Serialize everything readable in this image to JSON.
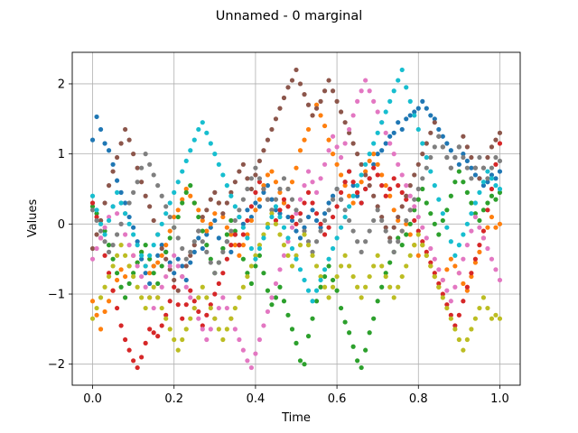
{
  "chart_data": {
    "type": "scatter",
    "title": "Unnamed - 0 marginal",
    "xlabel": "Time",
    "ylabel": "Values",
    "xlim": [
      -0.05,
      1.05
    ],
    "ylim": [
      -2.3,
      2.45
    ],
    "xticks": [
      0.0,
      0.2,
      0.4,
      0.6,
      0.8,
      1.0
    ],
    "xtick_labels": [
      "0.0",
      "0.2",
      "0.4",
      "0.6",
      "0.8",
      "1.0"
    ],
    "yticks": [
      -2,
      -1,
      0,
      1,
      2
    ],
    "ytick_labels": [
      "−2",
      "−1",
      "0",
      "1",
      "2"
    ],
    "grid": true,
    "legend": "none",
    "x": [
      0.0,
      0.01,
      0.02,
      0.03,
      0.04,
      0.05,
      0.06,
      0.07,
      0.08,
      0.09,
      0.1,
      0.11,
      0.12,
      0.13,
      0.14,
      0.15,
      0.16,
      0.17,
      0.18,
      0.19,
      0.2,
      0.21,
      0.22,
      0.23,
      0.24,
      0.25,
      0.26,
      0.27,
      0.28,
      0.29,
      0.3,
      0.31,
      0.32,
      0.33,
      0.34,
      0.35,
      0.36,
      0.37,
      0.38,
      0.39,
      0.4,
      0.41,
      0.42,
      0.43,
      0.44,
      0.45,
      0.46,
      0.47,
      0.48,
      0.49,
      0.5,
      0.51,
      0.52,
      0.53,
      0.54,
      0.55,
      0.56,
      0.57,
      0.58,
      0.59,
      0.6,
      0.61,
      0.62,
      0.63,
      0.64,
      0.65,
      0.66,
      0.67,
      0.68,
      0.69,
      0.7,
      0.71,
      0.72,
      0.73,
      0.74,
      0.75,
      0.76,
      0.77,
      0.78,
      0.79,
      0.8,
      0.81,
      0.82,
      0.83,
      0.84,
      0.85,
      0.86,
      0.87,
      0.88,
      0.89,
      0.9,
      0.91,
      0.92,
      0.93,
      0.94,
      0.95,
      0.96,
      0.97,
      0.98,
      0.99,
      1.0
    ],
    "series": [
      {
        "color": "#1f77b4",
        "values": [
          1.2,
          1.53,
          1.35,
          1.15,
          1.05,
          0.85,
          0.62,
          0.45,
          0.3,
          0.1,
          -0.05,
          -0.25,
          -0.5,
          -0.7,
          -0.85,
          -0.6,
          -0.45,
          -0.3,
          -0.4,
          -0.55,
          -0.7,
          -0.5,
          -0.6,
          -0.8,
          -0.55,
          -0.4,
          -0.2,
          -0.35,
          -0.15,
          -0.05,
          0.05,
          -0.2,
          -0.35,
          -0.25,
          -0.4,
          -0.15,
          0.1,
          0.0,
          0.2,
          0.1,
          0.3,
          0.25,
          0.45,
          0.55,
          0.35,
          0.2,
          0.15,
          0.3,
          0.1,
          0.05,
          -0.1,
          -0.2,
          -0.05,
          0.1,
          0.2,
          0.05,
          -0.05,
          0.15,
          0.3,
          0.4,
          0.5,
          0.35,
          0.6,
          0.75,
          0.55,
          0.4,
          0.3,
          0.5,
          0.65,
          0.85,
          1.0,
          1.05,
          1.15,
          1.25,
          1.3,
          1.45,
          1.35,
          1.5,
          1.55,
          1.6,
          1.65,
          1.75,
          1.65,
          1.55,
          1.5,
          1.35,
          1.25,
          1.15,
          1.05,
          0.95,
          0.85,
          1.0,
          0.9,
          0.8,
          0.7,
          0.65,
          0.55,
          0.6,
          0.7,
          0.65,
          0.75
        ]
      },
      {
        "color": "#ff7f0e",
        "values": [
          -1.1,
          -1.3,
          -1.5,
          -1.25,
          -1.1,
          -0.95,
          -0.8,
          -0.65,
          -0.75,
          -0.6,
          -0.45,
          -0.55,
          -0.4,
          -0.6,
          -0.7,
          -0.6,
          -0.55,
          -0.45,
          -0.3,
          -0.1,
          0.1,
          0.2,
          0.35,
          0.5,
          0.4,
          0.3,
          0.2,
          0.05,
          -0.1,
          0.0,
          0.15,
          0.3,
          0.1,
          -0.05,
          -0.15,
          -0.3,
          -0.45,
          -0.3,
          -0.15,
          0.05,
          0.2,
          0.35,
          0.55,
          0.7,
          0.75,
          0.6,
          0.45,
          0.3,
          0.5,
          0.6,
          0.8,
          1.05,
          1.2,
          1.35,
          1.55,
          1.7,
          1.55,
          1.4,
          1.2,
          1.0,
          0.85,
          0.7,
          0.55,
          0.4,
          0.3,
          0.45,
          0.6,
          0.75,
          0.9,
          1.0,
          0.85,
          0.7,
          0.55,
          0.4,
          0.2,
          0.05,
          -0.1,
          0.0,
          -0.15,
          -0.3,
          -0.45,
          -0.3,
          -0.45,
          -0.6,
          -0.75,
          -0.9,
          -0.8,
          -0.65,
          -0.5,
          -0.6,
          -0.7,
          -0.85,
          -0.95,
          -0.75,
          -0.55,
          -0.4,
          -0.2,
          -0.05,
          0.1,
          -0.05,
          0.0
        ]
      },
      {
        "color": "#2ca02c",
        "values": [
          0.25,
          0.15,
          0.05,
          -0.1,
          -0.3,
          -0.5,
          -0.7,
          -0.9,
          -1.05,
          -0.85,
          -0.7,
          -0.55,
          -0.4,
          -0.3,
          -0.5,
          -0.7,
          -0.85,
          -0.6,
          -0.4,
          -0.2,
          -0.05,
          0.1,
          0.3,
          0.45,
          0.55,
          0.3,
          0.1,
          -0.1,
          -0.3,
          -0.5,
          -0.7,
          -0.55,
          -0.35,
          -0.15,
          0.05,
          -0.1,
          -0.3,
          -0.5,
          -0.7,
          -0.85,
          -0.6,
          -0.45,
          -0.7,
          -0.95,
          -1.15,
          -1.05,
          -0.9,
          -1.1,
          -1.3,
          -1.5,
          -1.7,
          -1.95,
          -2.0,
          -1.6,
          -1.35,
          -1.1,
          -0.9,
          -0.75,
          -0.6,
          -0.8,
          -0.95,
          -1.2,
          -1.4,
          -1.55,
          -1.75,
          -1.95,
          -2.05,
          -1.8,
          -1.55,
          -1.35,
          -1.1,
          -0.9,
          -0.7,
          -0.55,
          -0.4,
          -0.2,
          -0.3,
          -0.15,
          0.0,
          0.2,
          0.35,
          0.5,
          0.3,
          0.15,
          0.0,
          -0.15,
          0.05,
          0.2,
          0.4,
          0.6,
          0.75,
          0.6,
          0.45,
          0.3,
          0.15,
          0.05,
          0.2,
          0.3,
          0.4,
          0.35,
          0.45
        ]
      },
      {
        "color": "#d62728",
        "values": [
          0.3,
          0.1,
          -0.2,
          -0.45,
          -0.7,
          -0.95,
          -1.2,
          -1.45,
          -1.65,
          -1.8,
          -1.95,
          -2.05,
          -1.9,
          -1.7,
          -1.5,
          -1.55,
          -1.6,
          -1.45,
          -1.3,
          -1.1,
          -0.9,
          -1.15,
          -1.35,
          -1.15,
          -0.95,
          -1.1,
          -1.25,
          -1.45,
          -1.3,
          -1.15,
          -1.0,
          -0.85,
          -0.7,
          -0.5,
          -0.3,
          -0.15,
          -0.3,
          -0.15,
          0.05,
          0.25,
          0.45,
          0.6,
          0.5,
          0.35,
          0.2,
          0.05,
          0.2,
          0.35,
          0.25,
          0.1,
          0.0,
          0.15,
          0.3,
          0.45,
          0.3,
          0.15,
          0.0,
          -0.15,
          -0.05,
          0.1,
          0.25,
          0.45,
          0.6,
          0.75,
          0.6,
          0.45,
          0.3,
          0.5,
          0.65,
          0.8,
          0.7,
          0.55,
          0.4,
          0.5,
          0.65,
          0.55,
          0.45,
          0.35,
          0.2,
          0.05,
          -0.1,
          -0.25,
          -0.4,
          -0.55,
          -0.7,
          -0.85,
          -1.0,
          -1.15,
          -1.3,
          -1.45,
          -1.3,
          -1.1,
          -0.9,
          -0.7,
          -0.5,
          -0.3,
          -0.1,
          0.2,
          0.5,
          0.85,
          1.15
        ]
      },
      {
        "color": "#8c564b",
        "values": [
          -0.35,
          -0.15,
          0.05,
          0.3,
          0.55,
          0.75,
          0.95,
          1.15,
          1.35,
          1.2,
          1.0,
          0.8,
          0.6,
          0.4,
          0.25,
          0.05,
          -0.15,
          -0.35,
          -0.5,
          -0.65,
          -0.8,
          -0.95,
          -0.75,
          -0.6,
          -0.45,
          -0.3,
          -0.1,
          0.1,
          0.2,
          0.35,
          0.45,
          0.3,
          0.15,
          0.3,
          0.45,
          0.6,
          0.75,
          0.85,
          0.65,
          0.5,
          0.7,
          0.9,
          1.05,
          1.2,
          1.35,
          1.5,
          1.65,
          1.8,
          1.95,
          2.05,
          2.2,
          2.0,
          1.85,
          1.7,
          1.55,
          1.65,
          1.75,
          1.9,
          2.05,
          1.9,
          1.75,
          1.6,
          1.45,
          1.3,
          1.15,
          1.0,
          0.85,
          0.7,
          0.55,
          0.4,
          0.25,
          0.1,
          -0.05,
          -0.2,
          -0.05,
          0.1,
          0.25,
          0.4,
          0.55,
          0.7,
          0.85,
          1.0,
          1.15,
          1.3,
          1.45,
          1.25,
          1.1,
          0.95,
          0.8,
          0.95,
          1.1,
          1.25,
          1.1,
          0.95,
          0.8,
          0.65,
          0.8,
          0.95,
          1.1,
          1.2,
          1.3
        ]
      },
      {
        "color": "#e377c2",
        "values": [
          -0.5,
          -0.35,
          -0.2,
          -0.05,
          0.1,
          0.25,
          0.15,
          0.0,
          -0.15,
          -0.3,
          -0.45,
          -0.6,
          -0.75,
          -0.9,
          -1.05,
          -1.2,
          -1.05,
          -0.9,
          -0.75,
          -0.6,
          -0.45,
          -0.6,
          -0.75,
          -0.9,
          -1.05,
          -1.2,
          -1.35,
          -1.5,
          -1.65,
          -1.5,
          -1.35,
          -1.2,
          -1.05,
          -1.2,
          -1.35,
          -1.5,
          -1.65,
          -1.8,
          -1.95,
          -2.05,
          -1.85,
          -1.65,
          -1.45,
          -1.25,
          -1.05,
          -0.85,
          -0.65,
          -0.45,
          -0.25,
          -0.05,
          0.15,
          0.35,
          0.55,
          0.75,
          0.6,
          0.45,
          0.65,
          0.85,
          1.05,
          1.25,
          1.1,
          0.95,
          1.15,
          1.35,
          1.55,
          1.75,
          1.9,
          2.05,
          1.9,
          1.75,
          1.6,
          1.45,
          1.3,
          1.15,
          1.0,
          0.85,
          0.7,
          0.55,
          0.4,
          0.25,
          0.1,
          -0.05,
          -0.2,
          -0.35,
          -0.5,
          -0.65,
          -0.8,
          -0.95,
          -1.1,
          -0.9,
          -0.7,
          -0.5,
          -0.3,
          -0.1,
          0.1,
          -0.05,
          -0.2,
          -0.35,
          -0.5,
          -0.65,
          -0.8
        ]
      },
      {
        "color": "#7f7f7f",
        "values": [
          0.2,
          0.05,
          -0.1,
          -0.25,
          -0.4,
          -0.3,
          -0.15,
          0.0,
          0.15,
          0.3,
          0.45,
          0.6,
          0.8,
          1.0,
          0.85,
          0.7,
          0.55,
          0.4,
          0.25,
          0.1,
          -0.05,
          -0.2,
          -0.35,
          -0.5,
          -0.4,
          -0.25,
          -0.1,
          -0.25,
          -0.4,
          -0.55,
          -0.7,
          -0.55,
          -0.4,
          -0.25,
          -0.1,
          0.05,
          0.2,
          0.35,
          0.5,
          0.65,
          0.8,
          0.65,
          0.5,
          0.35,
          0.2,
          0.35,
          0.5,
          0.65,
          0.5,
          0.35,
          0.2,
          0.05,
          -0.1,
          -0.25,
          -0.4,
          -0.25,
          -0.1,
          0.05,
          0.2,
          0.35,
          0.5,
          0.35,
          0.2,
          0.05,
          -0.1,
          -0.25,
          -0.4,
          -0.25,
          -0.1,
          0.05,
          0.2,
          0.05,
          -0.1,
          -0.25,
          -0.4,
          -0.25,
          -0.1,
          0.05,
          0.2,
          0.35,
          0.5,
          0.65,
          0.8,
          0.95,
          1.1,
          1.25,
          1.1,
          0.95,
          0.8,
          0.95,
          1.1,
          0.95,
          0.8,
          0.65,
          0.8,
          0.95,
          0.8,
          0.65,
          0.8,
          0.95,
          0.9
        ]
      },
      {
        "color": "#bcbd22",
        "values": [
          -1.35,
          -1.2,
          -1.05,
          -0.9,
          -0.75,
          -0.6,
          -0.45,
          -0.3,
          -0.45,
          -0.6,
          -0.75,
          -0.9,
          -1.05,
          -1.2,
          -1.05,
          -0.9,
          -1.05,
          -1.2,
          -1.35,
          -1.5,
          -1.65,
          -1.8,
          -1.65,
          -1.5,
          -1.35,
          -1.2,
          -1.05,
          -0.9,
          -1.05,
          -1.2,
          -1.35,
          -1.5,
          -1.65,
          -1.5,
          -1.35,
          -1.2,
          -1.05,
          -0.9,
          -0.75,
          -0.6,
          -0.45,
          -0.3,
          -0.15,
          0.0,
          0.15,
          0.0,
          -0.15,
          -0.3,
          -0.45,
          -0.6,
          -0.45,
          -0.3,
          -0.15,
          -0.3,
          -0.45,
          -0.6,
          -0.75,
          -0.9,
          -1.05,
          -0.9,
          -0.75,
          -0.6,
          -0.45,
          -0.6,
          -0.75,
          -0.9,
          -1.05,
          -0.9,
          -0.75,
          -0.6,
          -0.45,
          -0.6,
          -0.75,
          -0.9,
          -1.05,
          -0.9,
          -0.75,
          -0.6,
          -0.45,
          -0.3,
          -0.15,
          -0.3,
          -0.45,
          -0.6,
          -0.75,
          -0.9,
          -1.05,
          -1.2,
          -1.35,
          -1.5,
          -1.65,
          -1.8,
          -1.65,
          -1.5,
          -1.35,
          -1.2,
          -1.05,
          -1.2,
          -1.35,
          -1.3,
          -1.35
        ]
      },
      {
        "color": "#17becf",
        "values": [
          0.4,
          0.2,
          0.0,
          -0.15,
          0.05,
          0.25,
          0.45,
          0.3,
          0.15,
          0.0,
          -0.15,
          -0.3,
          -0.45,
          -0.6,
          -0.45,
          -0.3,
          -0.15,
          0.0,
          0.15,
          0.3,
          0.45,
          0.6,
          0.75,
          0.9,
          1.05,
          1.2,
          1.35,
          1.45,
          1.3,
          1.15,
          1.0,
          0.85,
          0.7,
          0.55,
          0.4,
          0.25,
          0.1,
          -0.05,
          -0.2,
          -0.35,
          -0.5,
          -0.35,
          -0.2,
          -0.05,
          0.1,
          0.25,
          0.1,
          -0.05,
          -0.2,
          -0.35,
          -0.5,
          -0.65,
          -0.8,
          -0.95,
          -1.1,
          -0.95,
          -0.8,
          -0.65,
          -0.5,
          -0.35,
          -0.2,
          -0.05,
          0.1,
          0.25,
          0.4,
          0.55,
          0.7,
          0.85,
          1.0,
          1.15,
          1.3,
          1.45,
          1.6,
          1.75,
          1.9,
          2.05,
          2.2,
          1.95,
          1.75,
          1.55,
          1.35,
          1.15,
          0.95,
          0.75,
          0.55,
          0.35,
          0.15,
          -0.05,
          -0.25,
          -0.45,
          -0.3,
          -0.15,
          0.0,
          0.15,
          0.3,
          0.45,
          0.6,
          0.75,
          0.65,
          0.55,
          0.5
        ]
      }
    ]
  }
}
